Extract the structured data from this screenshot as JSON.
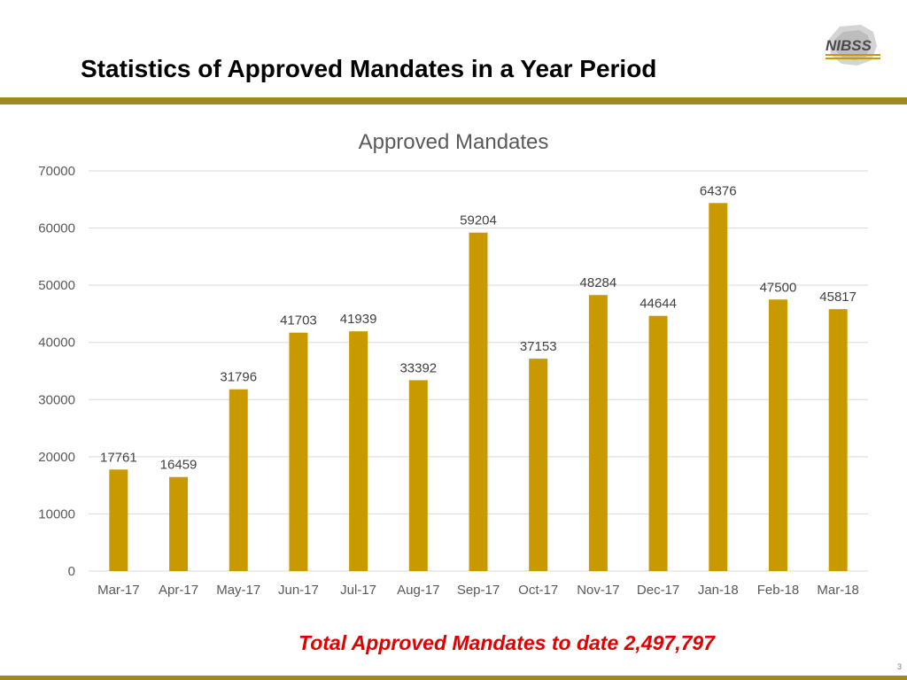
{
  "slide": {
    "title": "Statistics of Approved Mandates in a Year Period",
    "footer_note": "Total Approved Mandates to date 2,497,797",
    "page_number": "3",
    "logo_text": "NIBSS"
  },
  "colors": {
    "bar": "#C99A00",
    "rule": "#A08A1E",
    "footer_note": "#E00000"
  },
  "chart_data": {
    "type": "bar",
    "title": "Approved Mandates",
    "categories": [
      "Mar-17",
      "Apr-17",
      "May-17",
      "Jun-17",
      "Jul-17",
      "Aug-17",
      "Sep-17",
      "Oct-17",
      "Nov-17",
      "Dec-17",
      "Jan-18",
      "Feb-18",
      "Mar-18"
    ],
    "values": [
      17761,
      16459,
      31796,
      41703,
      41939,
      33392,
      59204,
      37153,
      48284,
      44644,
      64376,
      47500,
      45817
    ],
    "ylim": [
      0,
      70000
    ],
    "yticks": [
      0,
      10000,
      20000,
      30000,
      40000,
      50000,
      60000,
      70000
    ],
    "grid": true,
    "legend": "none"
  }
}
